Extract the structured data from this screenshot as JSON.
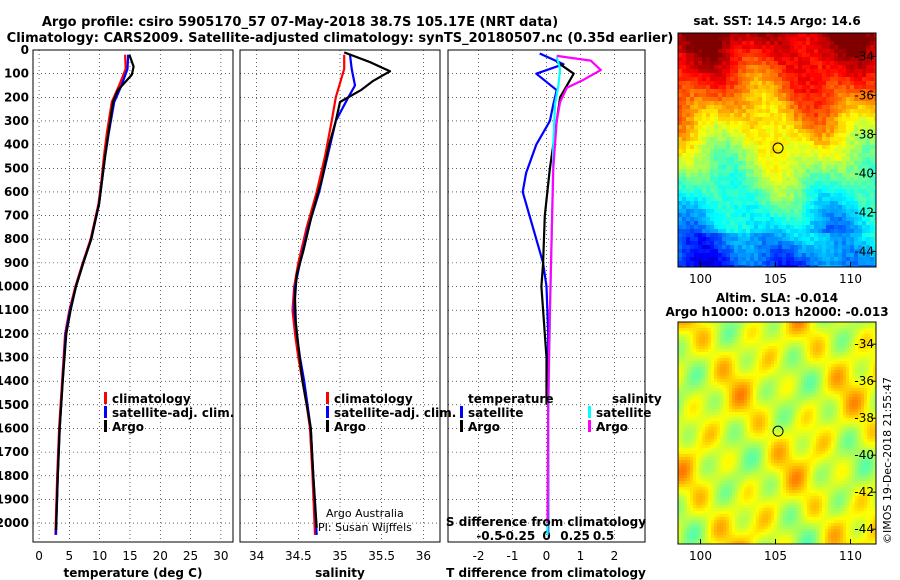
{
  "header": {
    "title_line1": "Argo profile: csiro 5905170_57 07-May-2018 38.7S 105.17E (NRT data)",
    "title_line2": "Climatology: CARS2009. Satellite-adjusted climatology: synTS_20180507.nc (0.35d earlier)"
  },
  "credits": {
    "line1": "Argo Australia",
    "line2": "PI: Susan Wijffels",
    "stamp": "©IMOS 19-Dec-2018 21:55:47"
  },
  "chart_data": [
    {
      "id": "temperature",
      "type": "line",
      "xlabel": "temperature (deg C)",
      "xlim": [
        -1,
        32
      ],
      "ylim": [
        2080,
        0
      ],
      "xticks": [
        "0",
        "5",
        "10",
        "15",
        "20",
        "25",
        "30"
      ],
      "xtick_values": [
        0,
        5,
        10,
        15,
        20,
        25,
        30
      ],
      "yticks": [
        "0",
        "100",
        "200",
        "300",
        "400",
        "500",
        "600",
        "700",
        "800",
        "900",
        "1000",
        "1100",
        "1200",
        "1300",
        "1400",
        "1500",
        "1600",
        "1700",
        "1800",
        "1900",
        "2000"
      ],
      "ytick_values": [
        0,
        100,
        200,
        300,
        400,
        500,
        600,
        700,
        800,
        900,
        1000,
        1100,
        1200,
        1300,
        1400,
        1500,
        1600,
        1700,
        1800,
        1900,
        2000
      ],
      "legend": [
        "climatology",
        "satellite-adj. clim.",
        "Argo"
      ],
      "series": [
        {
          "name": "climatology",
          "color": "#ff0000",
          "points": [
            [
              14.2,
              20
            ],
            [
              14.3,
              80
            ],
            [
              13.2,
              150
            ],
            [
              12.0,
              220
            ],
            [
              11.2,
              350
            ],
            [
              10.7,
              450
            ],
            [
              10.3,
              550
            ],
            [
              9.8,
              650
            ],
            [
              8.5,
              800
            ],
            [
              7.2,
              900
            ],
            [
              6.0,
              1000
            ],
            [
              5.0,
              1100
            ],
            [
              4.3,
              1200
            ],
            [
              3.8,
              1400
            ],
            [
              3.3,
              1600
            ],
            [
              3.0,
              1800
            ],
            [
              2.7,
              2050
            ]
          ]
        },
        {
          "name": "satellite-adj. clim.",
          "color": "#0000ff",
          "points": [
            [
              14.7,
              20
            ],
            [
              14.6,
              80
            ],
            [
              13.6,
              150
            ],
            [
              12.4,
              220
            ],
            [
              11.5,
              350
            ],
            [
              10.9,
              450
            ],
            [
              10.4,
              550
            ],
            [
              9.9,
              650
            ],
            [
              8.6,
              800
            ],
            [
              7.3,
              900
            ],
            [
              6.1,
              1000
            ],
            [
              5.1,
              1100
            ],
            [
              4.4,
              1200
            ],
            [
              3.9,
              1400
            ],
            [
              3.4,
              1600
            ],
            [
              3.1,
              1800
            ],
            [
              2.8,
              2050
            ]
          ]
        },
        {
          "name": "Argo",
          "color": "#000000",
          "points": [
            [
              14.9,
              20
            ],
            [
              15.6,
              70
            ],
            [
              15.3,
              105
            ],
            [
              13.0,
              170
            ],
            [
              12.2,
              220
            ],
            [
              11.5,
              340
            ],
            [
              10.9,
              450
            ],
            [
              10.4,
              550
            ],
            [
              9.9,
              650
            ],
            [
              8.6,
              800
            ],
            [
              7.3,
              900
            ],
            [
              6.1,
              1000
            ],
            [
              5.2,
              1100
            ],
            [
              4.5,
              1200
            ],
            [
              3.9,
              1400
            ],
            [
              3.4,
              1600
            ],
            [
              3.1,
              1800
            ],
            [
              2.8,
              2030
            ]
          ]
        }
      ]
    },
    {
      "id": "salinity",
      "type": "line",
      "xlabel": "salinity",
      "xlim": [
        33.8,
        36.2
      ],
      "ylim": [
        2080,
        0
      ],
      "xticks": [
        "34",
        "34.5",
        "35",
        "35.5",
        "36"
      ],
      "xtick_values": [
        34,
        34.5,
        35,
        35.5,
        36
      ],
      "legend": [
        "climatology",
        "satellite-adj. clim.",
        "Argo"
      ],
      "series": [
        {
          "name": "climatology",
          "color": "#ff0000",
          "points": [
            [
              35.05,
              20
            ],
            [
              35.05,
              80
            ],
            [
              34.95,
              200
            ],
            [
              34.9,
              300
            ],
            [
              34.82,
              450
            ],
            [
              34.72,
              600
            ],
            [
              34.6,
              750
            ],
            [
              34.5,
              900
            ],
            [
              34.45,
              1000
            ],
            [
              34.43,
              1100
            ],
            [
              34.46,
              1200
            ],
            [
              34.5,
              1300
            ],
            [
              34.55,
              1400
            ],
            [
              34.6,
              1500
            ],
            [
              34.64,
              1600
            ],
            [
              34.67,
              1800
            ],
            [
              34.7,
              2050
            ]
          ]
        },
        {
          "name": "satellite-adj. clim.",
          "color": "#0000ff",
          "points": [
            [
              35.12,
              20
            ],
            [
              35.14,
              80
            ],
            [
              35.18,
              150
            ],
            [
              35.1,
              200
            ],
            [
              34.95,
              300
            ],
            [
              34.85,
              450
            ],
            [
              34.75,
              600
            ],
            [
              34.62,
              750
            ],
            [
              34.52,
              900
            ],
            [
              34.46,
              1000
            ],
            [
              34.45,
              1100
            ],
            [
              34.48,
              1200
            ],
            [
              34.52,
              1300
            ],
            [
              34.57,
              1400
            ],
            [
              34.61,
              1500
            ],
            [
              34.65,
              1600
            ],
            [
              34.68,
              1800
            ],
            [
              34.72,
              2050
            ]
          ]
        },
        {
          "name": "Argo",
          "color": "#000000",
          "points": [
            [
              35.05,
              10
            ],
            [
              35.35,
              50
            ],
            [
              35.6,
              90
            ],
            [
              35.4,
              130
            ],
            [
              35.25,
              170
            ],
            [
              35.0,
              220
            ],
            [
              34.95,
              300
            ],
            [
              34.87,
              400
            ],
            [
              34.78,
              550
            ],
            [
              34.66,
              700
            ],
            [
              34.56,
              850
            ],
            [
              34.48,
              950
            ],
            [
              34.46,
              1050
            ],
            [
              34.47,
              1150
            ],
            [
              34.5,
              1250
            ],
            [
              34.55,
              1400
            ],
            [
              34.6,
              1500
            ],
            [
              34.65,
              1600
            ],
            [
              34.68,
              1800
            ],
            [
              34.72,
              2020
            ]
          ]
        }
      ]
    },
    {
      "id": "difference",
      "type": "line",
      "xlabel": "T difference from climatology",
      "xlabel2": "S difference from climatology",
      "xlim": [
        -2.9,
        2.9
      ],
      "ylim": [
        2080,
        0
      ],
      "xticks": [
        "-2",
        "-1",
        "0",
        "1",
        "2"
      ],
      "xtick_values": [
        -2,
        -1,
        0,
        1,
        2
      ],
      "xticks_s": [
        "-0.5",
        "-0.25",
        "0",
        "0.25",
        "0.5"
      ],
      "legend_t_title": "temperature",
      "legend_s_title": "salinity",
      "legend_t": [
        "satellite",
        "Argo"
      ],
      "legend_s": [
        "satellite",
        "Argo"
      ],
      "series": [
        {
          "name": "T satellite",
          "color": "#0000ff",
          "points": [
            [
              -0.2,
              15
            ],
            [
              0.5,
              60
            ],
            [
              -0.3,
              100
            ],
            [
              0.3,
              170
            ],
            [
              0.2,
              230
            ],
            [
              0.1,
              300
            ],
            [
              -0.3,
              400
            ],
            [
              -0.6,
              520
            ],
            [
              -0.7,
              600
            ],
            [
              -0.5,
              700
            ],
            [
              -0.3,
              800
            ],
            [
              -0.1,
              900
            ],
            [
              0.0,
              1000
            ],
            [
              0.05,
              1200
            ],
            [
              0.05,
              1500
            ],
            [
              0.05,
              2050
            ]
          ]
        },
        {
          "name": "T Argo",
          "color": "#000000",
          "points": [
            [
              0.3,
              50
            ],
            [
              0.8,
              100
            ],
            [
              0.4,
              200
            ],
            [
              0.3,
              300
            ],
            [
              0.1,
              500
            ],
            [
              -0.05,
              700
            ],
            [
              -0.1,
              900
            ],
            [
              -0.15,
              1000
            ],
            [
              -0.1,
              1100
            ],
            [
              0.0,
              1300
            ],
            [
              0.0,
              1500
            ]
          ]
        },
        {
          "name": "S satellite",
          "color": "#00ffff",
          "points": [
            [
              0.3,
              30
            ],
            [
              0.4,
              80
            ],
            [
              0.35,
              150
            ],
            [
              0.25,
              230
            ],
            [
              0.2,
              400
            ],
            [
              0.18,
              600
            ],
            [
              0.15,
              800
            ],
            [
              0.12,
              1000
            ],
            [
              0.08,
              1300
            ],
            [
              0.05,
              1600
            ],
            [
              0.03,
              2050
            ]
          ]
        },
        {
          "name": "S Argo",
          "color": "#ff00ff",
          "points": [
            [
              0.3,
              25
            ],
            [
              1.3,
              45
            ],
            [
              1.6,
              85
            ],
            [
              1.1,
              125
            ],
            [
              0.6,
              160
            ],
            [
              0.4,
              220
            ],
            [
              0.3,
              300
            ],
            [
              0.2,
              500
            ],
            [
              0.15,
              800
            ],
            [
              0.1,
              1100
            ],
            [
              0.05,
              1500
            ],
            [
              0.03,
              2000
            ]
          ]
        }
      ]
    },
    {
      "id": "sst_map",
      "type": "heatmap",
      "title": "sat. SST: 14.5 Argo: 14.6",
      "xticks": [
        "100",
        "105",
        "110"
      ],
      "xtick_values": [
        100,
        105,
        110
      ],
      "yticks": [
        "-34",
        "-36",
        "-38",
        "-40",
        "-42",
        "-44"
      ],
      "ytick_values": [
        -34,
        -36,
        -38,
        -40,
        -42,
        -44
      ],
      "xlim": [
        98.5,
        111.7
      ],
      "ylim": [
        -44.8,
        -32.8
      ],
      "argo_position": [
        105.17,
        -38.7
      ]
    },
    {
      "id": "sla_map",
      "type": "heatmap",
      "title_line1": "Altim. SLA: -0.014",
      "title_line2": "Argo h1000: 0.013 h2000: -0.013",
      "xticks": [
        "100",
        "105",
        "110"
      ],
      "xtick_values": [
        100,
        105,
        110
      ],
      "yticks": [
        "-34",
        "-36",
        "-38",
        "-40",
        "-42",
        "-44"
      ],
      "ytick_values": [
        -34,
        -36,
        -38,
        -40,
        -42,
        -44
      ],
      "xlim": [
        98.5,
        111.7
      ],
      "ylim": [
        -44.8,
        -32.8
      ],
      "argo_position": [
        105.17,
        -38.7
      ]
    }
  ]
}
